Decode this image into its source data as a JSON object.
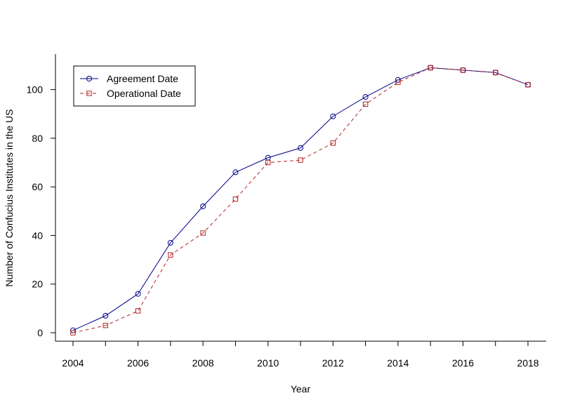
{
  "chart_data": {
    "type": "line",
    "title": "",
    "xlabel": "Year",
    "ylabel": "Number of Confucius Institutes in the US",
    "xlim": [
      2004,
      2018
    ],
    "ylim": [
      0,
      110
    ],
    "xticks": [
      2004,
      2006,
      2008,
      2010,
      2012,
      2014,
      2016,
      2018
    ],
    "x_minor_ticks": [
      2005,
      2007,
      2009,
      2011,
      2013,
      2015,
      2017
    ],
    "yticks": [
      0,
      20,
      40,
      60,
      80,
      100
    ],
    "grid": false,
    "legend_position": "top-left",
    "x": [
      2004,
      2005,
      2006,
      2007,
      2008,
      2009,
      2010,
      2011,
      2012,
      2013,
      2014,
      2015,
      2016,
      2017,
      2018
    ],
    "series": [
      {
        "name": "Agreement Date",
        "color": "#00008b",
        "line_style": "solid",
        "marker": "circle",
        "values": [
          1,
          7,
          16,
          37,
          52,
          66,
          72,
          76,
          89,
          97,
          104,
          109,
          108,
          107,
          102
        ]
      },
      {
        "name": "Operational Date",
        "color": "#b22222",
        "line_style": "dashed",
        "marker": "square",
        "values": [
          0,
          3,
          9,
          32,
          41,
          55,
          70,
          71,
          78,
          94,
          103,
          109,
          108,
          107,
          102
        ]
      }
    ]
  }
}
